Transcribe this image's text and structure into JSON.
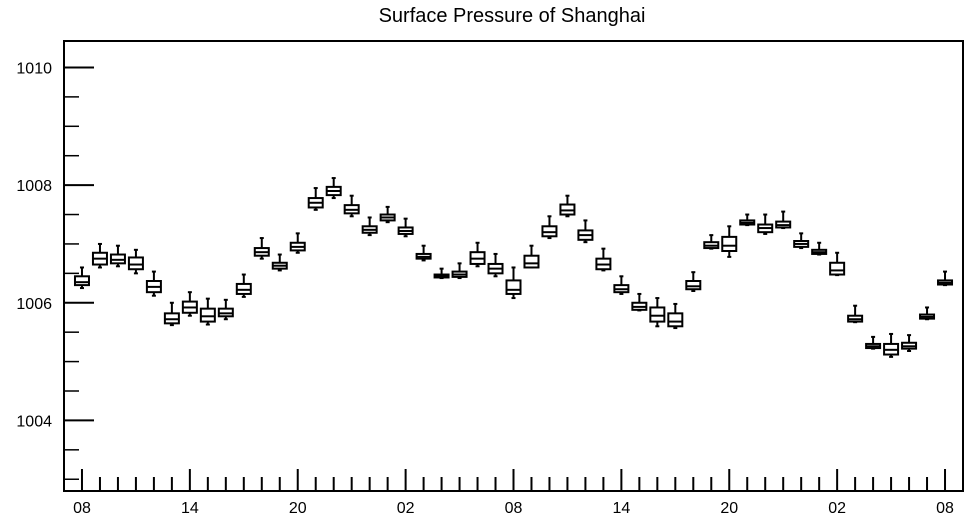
{
  "chart_data": {
    "type": "box",
    "title": "Surface Pressure of Shanghai",
    "xlabel": "",
    "ylabel": "",
    "ylim": [
      1002.8,
      1010.45
    ],
    "y_ticks": [
      1004,
      1006,
      1008,
      1010
    ],
    "y_tick_labels": [
      "1004",
      "1006",
      "1008",
      "1010"
    ],
    "x_tick_labels": [
      "08",
      "14",
      "20",
      "02",
      "08",
      "14",
      "20",
      "02",
      "08"
    ],
    "x_tick_hours": [
      8,
      14,
      20,
      26,
      32,
      38,
      44,
      50,
      56
    ],
    "x_range_hours": [
      7,
      57
    ],
    "grid": false,
    "legend": "none",
    "boxes": [
      {
        "hour": 8,
        "whisker_low": 1006.25,
        "q1": 1006.3,
        "median": 1006.35,
        "q3": 1006.45,
        "whisker_high": 1006.6
      },
      {
        "hour": 9,
        "whisker_low": 1006.6,
        "q1": 1006.65,
        "median": 1006.75,
        "q3": 1006.85,
        "whisker_high": 1007.0
      },
      {
        "hour": 10,
        "whisker_low": 1006.62,
        "q1": 1006.67,
        "median": 1006.73,
        "q3": 1006.82,
        "whisker_high": 1006.97
      },
      {
        "hour": 11,
        "whisker_low": 1006.5,
        "q1": 1006.57,
        "median": 1006.65,
        "q3": 1006.77,
        "whisker_high": 1006.9
      },
      {
        "hour": 12,
        "whisker_low": 1006.12,
        "q1": 1006.18,
        "median": 1006.27,
        "q3": 1006.37,
        "whisker_high": 1006.53
      },
      {
        "hour": 13,
        "whisker_low": 1005.62,
        "q1": 1005.65,
        "median": 1005.72,
        "q3": 1005.82,
        "whisker_high": 1006.0
      },
      {
        "hour": 14,
        "whisker_low": 1005.78,
        "q1": 1005.83,
        "median": 1005.92,
        "q3": 1006.02,
        "whisker_high": 1006.18
      },
      {
        "hour": 15,
        "whisker_low": 1005.63,
        "q1": 1005.68,
        "median": 1005.77,
        "q3": 1005.9,
        "whisker_high": 1006.07
      },
      {
        "hour": 16,
        "whisker_low": 1005.72,
        "q1": 1005.77,
        "median": 1005.82,
        "q3": 1005.9,
        "whisker_high": 1006.05
      },
      {
        "hour": 17,
        "whisker_low": 1006.1,
        "q1": 1006.15,
        "median": 1006.22,
        "q3": 1006.32,
        "whisker_high": 1006.48
      },
      {
        "hour": 18,
        "whisker_low": 1006.75,
        "q1": 1006.8,
        "median": 1006.86,
        "q3": 1006.93,
        "whisker_high": 1007.1
      },
      {
        "hour": 19,
        "whisker_low": 1006.55,
        "q1": 1006.58,
        "median": 1006.63,
        "q3": 1006.68,
        "whisker_high": 1006.82
      },
      {
        "hour": 20,
        "whisker_low": 1006.85,
        "q1": 1006.89,
        "median": 1006.95,
        "q3": 1007.02,
        "whisker_high": 1007.18
      },
      {
        "hour": 21,
        "whisker_low": 1007.58,
        "q1": 1007.62,
        "median": 1007.7,
        "q3": 1007.78,
        "whisker_high": 1007.95
      },
      {
        "hour": 22,
        "whisker_low": 1007.78,
        "q1": 1007.83,
        "median": 1007.9,
        "q3": 1007.97,
        "whisker_high": 1008.12
      },
      {
        "hour": 23,
        "whisker_low": 1007.47,
        "q1": 1007.52,
        "median": 1007.58,
        "q3": 1007.66,
        "whisker_high": 1007.82
      },
      {
        "hour": 24,
        "whisker_low": 1007.15,
        "q1": 1007.19,
        "median": 1007.24,
        "q3": 1007.3,
        "whisker_high": 1007.45
      },
      {
        "hour": 25,
        "whisker_low": 1007.37,
        "q1": 1007.4,
        "median": 1007.45,
        "q3": 1007.5,
        "whisker_high": 1007.63
      },
      {
        "hour": 26,
        "whisker_low": 1007.13,
        "q1": 1007.17,
        "median": 1007.22,
        "q3": 1007.28,
        "whisker_high": 1007.43
      },
      {
        "hour": 27,
        "whisker_low": 1006.72,
        "q1": 1006.75,
        "median": 1006.78,
        "q3": 1006.83,
        "whisker_high": 1006.97
      },
      {
        "hour": 28,
        "whisker_low": 1006.42,
        "q1": 1006.43,
        "median": 1006.45,
        "q3": 1006.48,
        "whisker_high": 1006.58
      },
      {
        "hour": 29,
        "whisker_low": 1006.42,
        "q1": 1006.44,
        "median": 1006.48,
        "q3": 1006.53,
        "whisker_high": 1006.67
      },
      {
        "hour": 30,
        "whisker_low": 1006.62,
        "q1": 1006.66,
        "median": 1006.75,
        "q3": 1006.86,
        "whisker_high": 1007.02
      },
      {
        "hour": 31,
        "whisker_low": 1006.45,
        "q1": 1006.5,
        "median": 1006.58,
        "q3": 1006.66,
        "whisker_high": 1006.83
      },
      {
        "hour": 32,
        "whisker_low": 1006.08,
        "q1": 1006.15,
        "median": 1006.22,
        "q3": 1006.38,
        "whisker_high": 1006.6
      },
      {
        "hour": 33,
        "whisker_low": 1006.6,
        "q1": 1006.6,
        "median": 1006.67,
        "q3": 1006.8,
        "whisker_high": 1006.97
      },
      {
        "hour": 34,
        "whisker_low": 1007.1,
        "q1": 1007.13,
        "median": 1007.2,
        "q3": 1007.3,
        "whisker_high": 1007.47
      },
      {
        "hour": 35,
        "whisker_low": 1007.47,
        "q1": 1007.5,
        "median": 1007.57,
        "q3": 1007.67,
        "whisker_high": 1007.82
      },
      {
        "hour": 36,
        "whisker_low": 1007.03,
        "q1": 1007.07,
        "median": 1007.15,
        "q3": 1007.23,
        "whisker_high": 1007.4
      },
      {
        "hour": 37,
        "whisker_low": 1006.55,
        "q1": 1006.57,
        "median": 1006.65,
        "q3": 1006.75,
        "whisker_high": 1006.92
      },
      {
        "hour": 38,
        "whisker_low": 1006.15,
        "q1": 1006.18,
        "median": 1006.23,
        "q3": 1006.3,
        "whisker_high": 1006.45
      },
      {
        "hour": 39,
        "whisker_low": 1005.87,
        "q1": 1005.88,
        "median": 1005.93,
        "q3": 1006.0,
        "whisker_high": 1006.15
      },
      {
        "hour": 40,
        "whisker_low": 1005.6,
        "q1": 1005.68,
        "median": 1005.78,
        "q3": 1005.92,
        "whisker_high": 1006.08
      },
      {
        "hour": 41,
        "whisker_low": 1005.57,
        "q1": 1005.6,
        "median": 1005.68,
        "q3": 1005.82,
        "whisker_high": 1005.98
      },
      {
        "hour": 42,
        "whisker_low": 1006.2,
        "q1": 1006.23,
        "median": 1006.28,
        "q3": 1006.37,
        "whisker_high": 1006.52
      },
      {
        "hour": 43,
        "whisker_low": 1006.92,
        "q1": 1006.93,
        "median": 1006.97,
        "q3": 1007.03,
        "whisker_high": 1007.15
      },
      {
        "hour": 44,
        "whisker_low": 1006.78,
        "q1": 1006.88,
        "median": 1006.97,
        "q3": 1007.12,
        "whisker_high": 1007.3
      },
      {
        "hour": 45,
        "whisker_low": 1007.32,
        "q1": 1007.33,
        "median": 1007.36,
        "q3": 1007.4,
        "whisker_high": 1007.5
      },
      {
        "hour": 46,
        "whisker_low": 1007.17,
        "q1": 1007.2,
        "median": 1007.27,
        "q3": 1007.33,
        "whisker_high": 1007.5
      },
      {
        "hour": 47,
        "whisker_low": 1007.27,
        "q1": 1007.28,
        "median": 1007.32,
        "q3": 1007.38,
        "whisker_high": 1007.55
      },
      {
        "hour": 48,
        "whisker_low": 1006.93,
        "q1": 1006.95,
        "median": 1007.0,
        "q3": 1007.05,
        "whisker_high": 1007.18
      },
      {
        "hour": 49,
        "whisker_low": 1006.82,
        "q1": 1006.83,
        "median": 1006.86,
        "q3": 1006.9,
        "whisker_high": 1007.02
      },
      {
        "hour": 50,
        "whisker_low": 1006.47,
        "q1": 1006.48,
        "median": 1006.55,
        "q3": 1006.68,
        "whisker_high": 1006.85
      },
      {
        "hour": 51,
        "whisker_low": 1005.67,
        "q1": 1005.68,
        "median": 1005.72,
        "q3": 1005.78,
        "whisker_high": 1005.95
      },
      {
        "hour": 52,
        "whisker_low": 1005.22,
        "q1": 1005.23,
        "median": 1005.26,
        "q3": 1005.3,
        "whisker_high": 1005.42
      },
      {
        "hour": 53,
        "whisker_low": 1005.08,
        "q1": 1005.12,
        "median": 1005.2,
        "q3": 1005.3,
        "whisker_high": 1005.47
      },
      {
        "hour": 54,
        "whisker_low": 1005.18,
        "q1": 1005.22,
        "median": 1005.26,
        "q3": 1005.32,
        "whisker_high": 1005.45
      },
      {
        "hour": 55,
        "whisker_low": 1005.72,
        "q1": 1005.73,
        "median": 1005.76,
        "q3": 1005.8,
        "whisker_high": 1005.92
      },
      {
        "hour": 56,
        "whisker_low": 1006.3,
        "q1": 1006.31,
        "median": 1006.34,
        "q3": 1006.38,
        "whisker_high": 1006.53
      }
    ]
  }
}
